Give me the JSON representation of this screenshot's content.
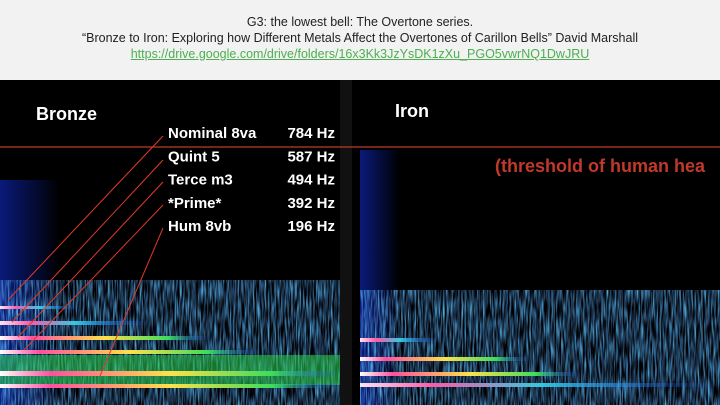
{
  "header": {
    "line1": "G3: the lowest bell: The Overtone series.",
    "line2": "“Bronze to Iron: Exploring how Different Metals Affect the Overtones of Carillon Bells” David Marshall",
    "link": "https://drive.google.com/drive/folders/16x3Kk3JzYsDK1zXu_PGO5vwrNQ1DwJRU"
  },
  "panels": {
    "left": {
      "label": "Bronze"
    },
    "right": {
      "label": "Iron"
    }
  },
  "overtones": [
    {
      "name": "Nominal 8va",
      "freq": "784 Hz"
    },
    {
      "name": "Quint 5",
      "freq": "587 Hz"
    },
    {
      "name": "Terce m3",
      "freq": "494 Hz"
    },
    {
      "name": "*Prime*",
      "freq": "392 Hz"
    },
    {
      "name": "Hum 8vb",
      "freq": "196 Hz"
    }
  ],
  "threshold": "(threshold of human hea"
}
